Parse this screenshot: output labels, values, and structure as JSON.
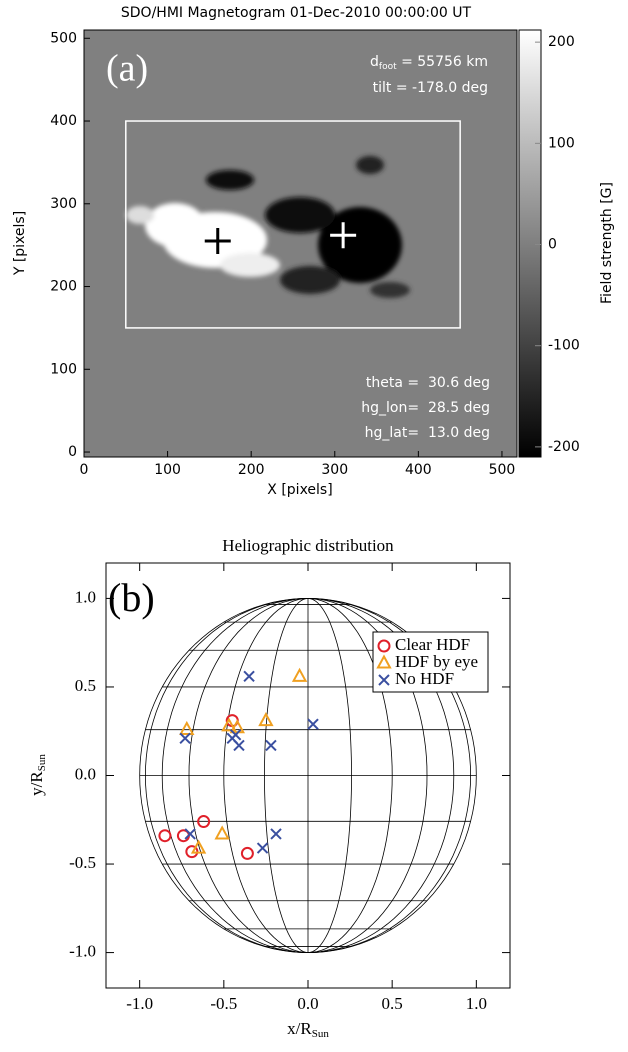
{
  "chart_data": [
    {
      "type": "image",
      "title": "SDO/HMI Magnetogram 01-Dec-2010 00:00:00 UT",
      "panel_label": "(a)",
      "xlabel": "X [pixels]",
      "ylabel": "Y [pixels]",
      "xlim": [
        0,
        518
      ],
      "ylim": [
        -6,
        510
      ],
      "xticks": [
        0,
        100,
        200,
        300,
        400,
        500
      ],
      "yticks": [
        0,
        100,
        200,
        300,
        400,
        500
      ],
      "box": {
        "x": [
          50,
          450
        ],
        "y": [
          150,
          400
        ]
      },
      "markers": [
        {
          "x": 160,
          "y": 255,
          "color": "#000000"
        },
        {
          "x": 310,
          "y": 262,
          "color": "#ffffff"
        }
      ],
      "foot_distance": {
        "symbol": "d",
        "sub": "foot",
        "text": " = 55756 km"
      },
      "annotations_top": [
        "tilt = -178.0 deg"
      ],
      "annotations_bottom": [
        "theta =  30.6 deg",
        "hg_lon=  28.5 deg",
        "hg_lat=  13.0 deg"
      ],
      "colorbar": {
        "label": "Field strength [G]",
        "lim": [
          -210,
          212
        ],
        "ticks": [
          -200,
          -100,
          0,
          100,
          200
        ]
      }
    },
    {
      "type": "scatter",
      "title": "Heliographic distribution",
      "panel_label": "(b)",
      "xlabel": "x/R",
      "xlabel_sub": "Sun",
      "ylabel": "y/R",
      "ylabel_sub": "Sun",
      "xlim": [
        -1.2,
        1.2
      ],
      "ylim": [
        -1.2,
        1.2
      ],
      "xticks": [
        {
          "value": -1,
          "label": "-1.0"
        },
        {
          "value": -0.5,
          "label": "-0.5"
        },
        {
          "value": 0,
          "label": "0.0"
        },
        {
          "value": 0.5,
          "label": "0.5"
        },
        {
          "value": 1,
          "label": "1.0"
        }
      ],
      "yticks": [
        {
          "value": -1,
          "label": "-1.0"
        },
        {
          "value": -0.5,
          "label": "-0.5"
        },
        {
          "value": 0,
          "label": "0.0"
        },
        {
          "value": 0.5,
          "label": "0.5"
        },
        {
          "value": 1,
          "label": "1.0"
        }
      ],
      "legend": "upper right",
      "series": [
        {
          "name": "Clear HDF",
          "color": "#e0202a",
          "marker": "circle",
          "x": [
            -0.85,
            -0.74,
            -0.69,
            -0.62,
            -0.45,
            -0.36
          ],
          "values": [
            -0.34,
            -0.34,
            -0.43,
            -0.26,
            0.31,
            -0.44
          ]
        },
        {
          "name": "HDF by eye",
          "color": "#f0a020",
          "marker": "triangle",
          "x": [
            -0.72,
            -0.65,
            -0.51,
            -0.47,
            -0.42,
            -0.25,
            -0.05
          ],
          "values": [
            0.26,
            -0.41,
            -0.33,
            0.28,
            0.27,
            0.31,
            0.56
          ]
        },
        {
          "name": "No HDF",
          "color": "#3a4fa0",
          "marker": "x",
          "x": [
            -0.35,
            -0.73,
            -0.7,
            -0.45,
            -0.43,
            -0.41,
            -0.22,
            -0.27,
            -0.19,
            0.03
          ],
          "values": [
            0.56,
            0.21,
            -0.33,
            0.21,
            0.23,
            0.17,
            0.17,
            -0.41,
            -0.33,
            0.29
          ]
        }
      ]
    }
  ]
}
